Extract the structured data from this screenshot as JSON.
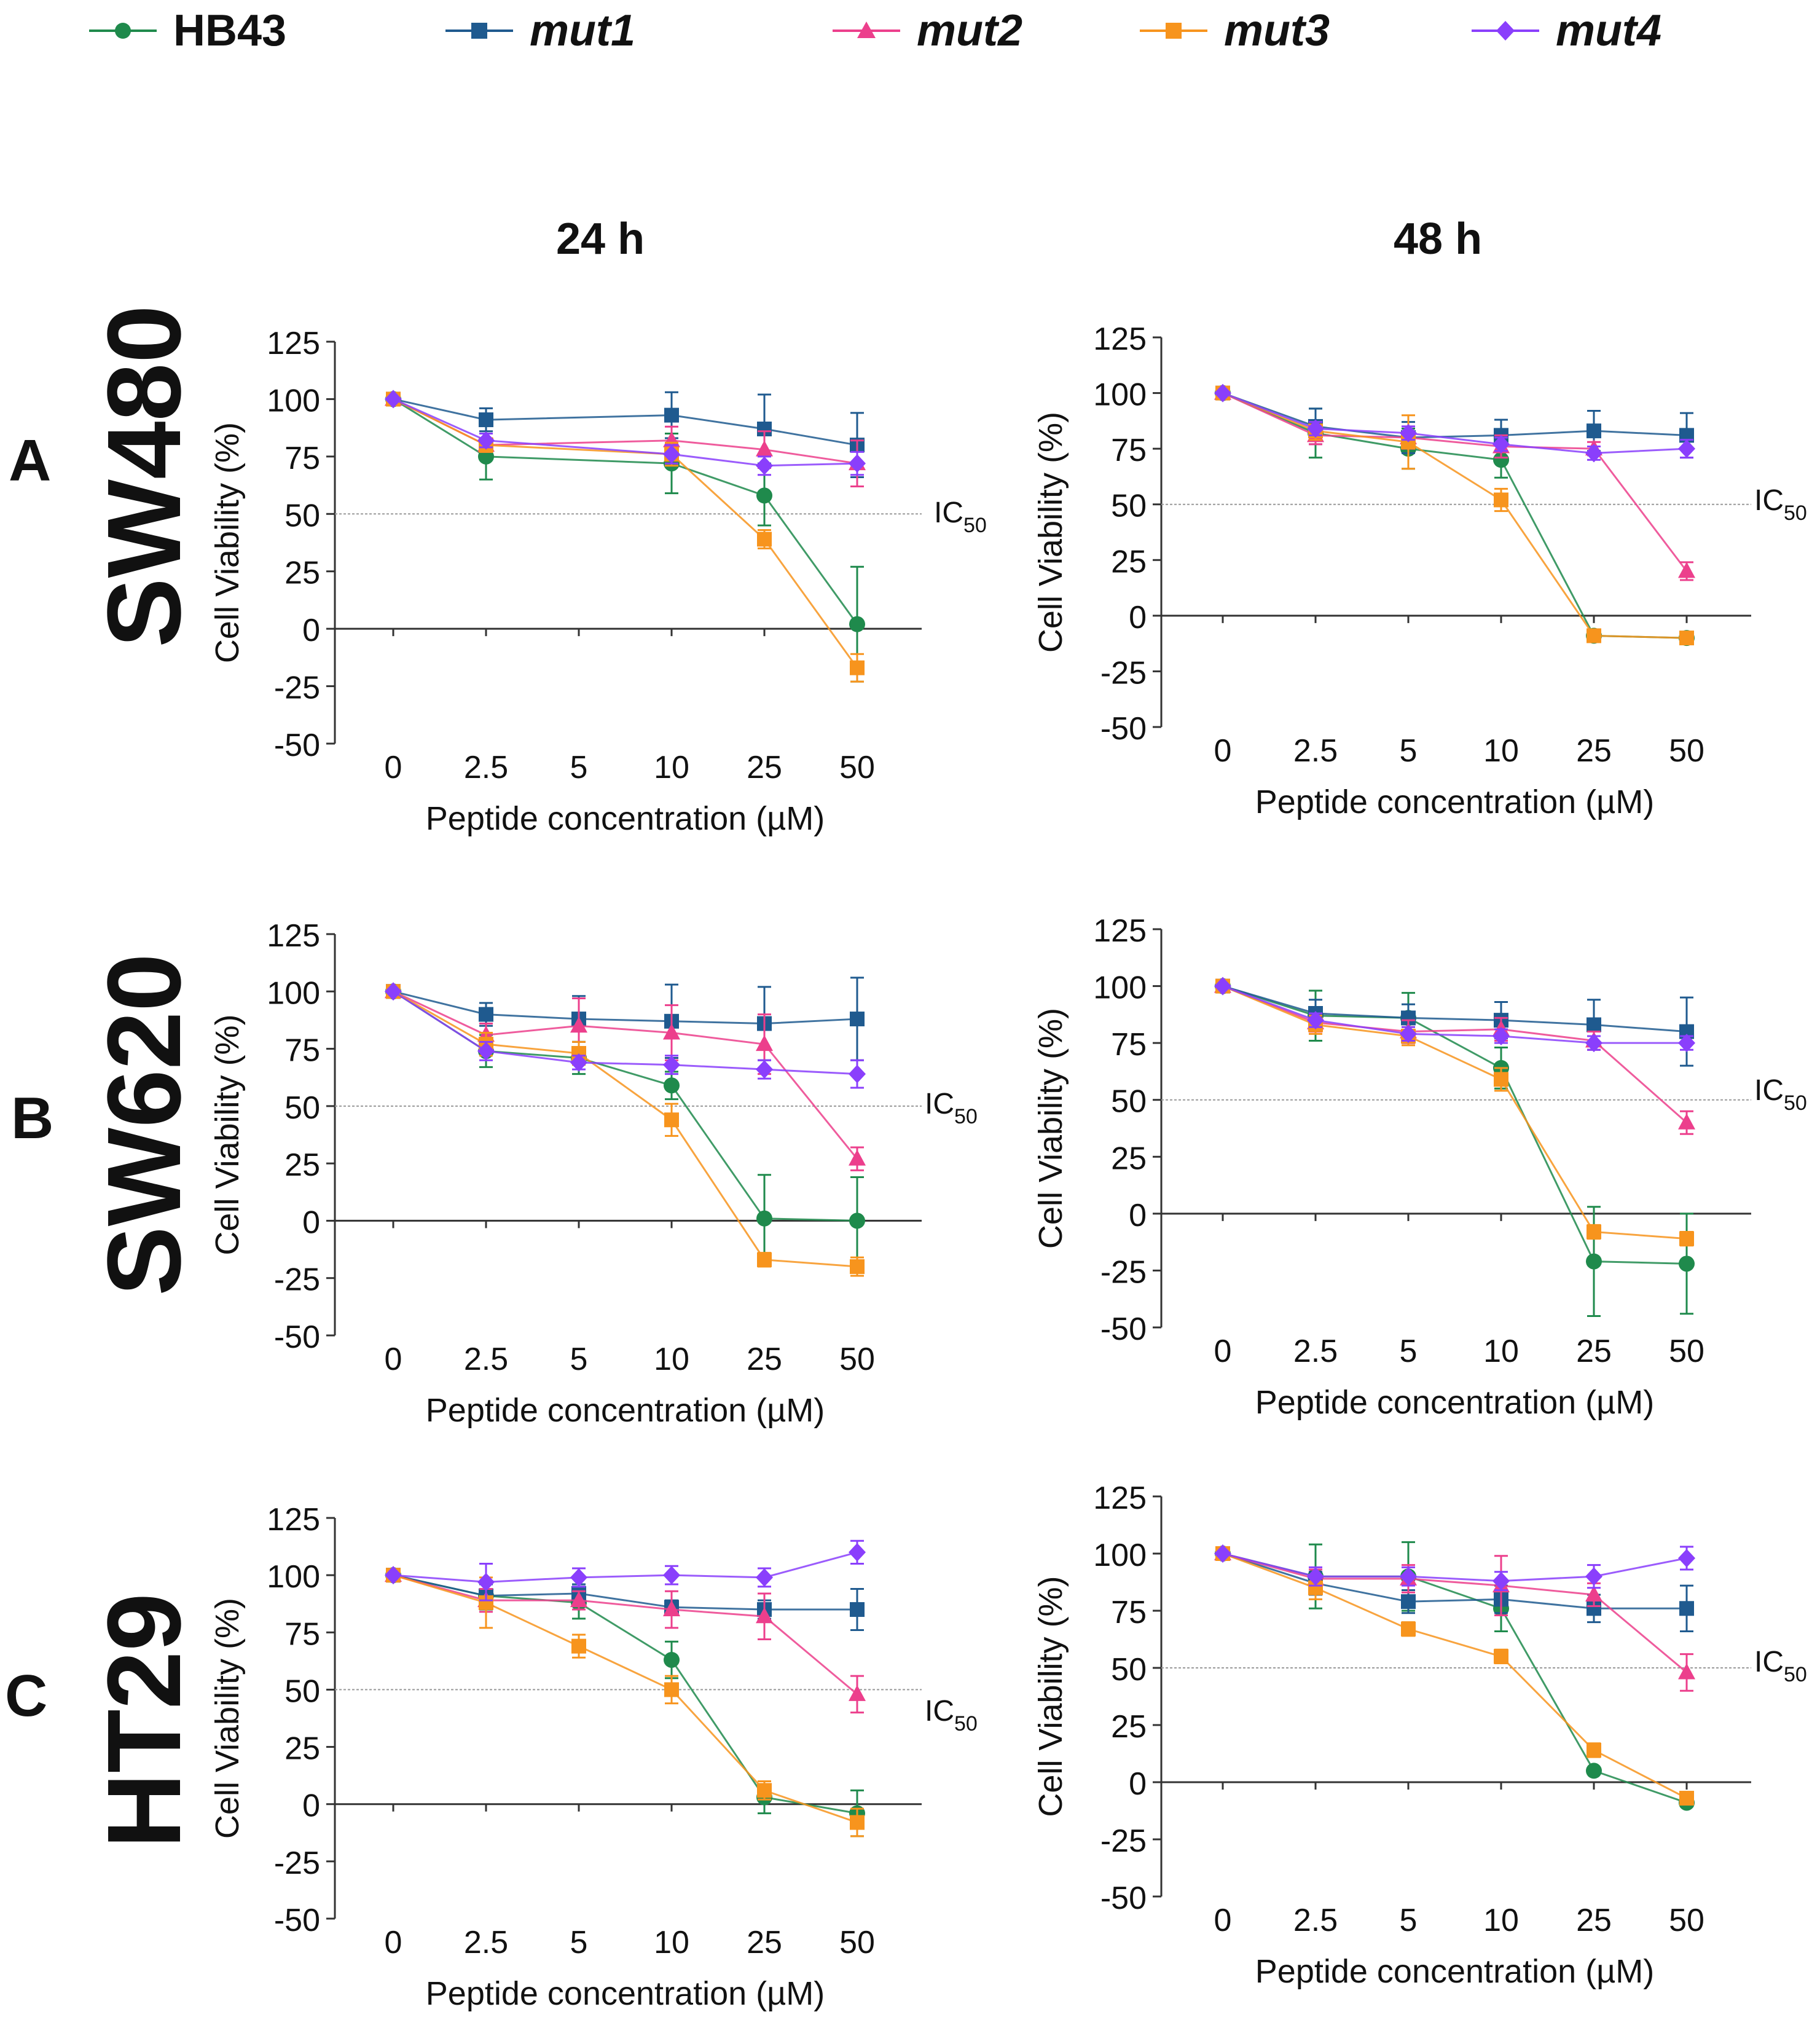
{
  "legend": [
    {
      "name": "HB43",
      "color": "#1f8a4c",
      "marker": "circle",
      "italic": false
    },
    {
      "name": "mut1",
      "color": "#1f5a8f",
      "marker": "square",
      "italic": true
    },
    {
      "name": "mut2",
      "color": "#ec3f8c",
      "marker": "triangle-up",
      "italic": true
    },
    {
      "name": "mut3",
      "color": "#f7941d",
      "marker": "square",
      "italic": true
    },
    {
      "name": "mut4",
      "color": "#8a3ffc",
      "marker": "diamond",
      "italic": true
    }
  ],
  "columns": [
    "24 h",
    "48 h"
  ],
  "rows": [
    {
      "letter": "A",
      "cell_line": "SW480"
    },
    {
      "letter": "B",
      "cell_line": "SW620"
    },
    {
      "letter": "C",
      "cell_line": "HT29"
    }
  ],
  "chart_data": [
    {
      "type": "line",
      "row": "A",
      "time": "24 h",
      "categories": [
        "0",
        "2.5",
        "5",
        "10",
        "25",
        "50"
      ],
      "xlabel": "Peptide concentration (µM)",
      "ylabel": "Cell Viability (%)",
      "ylim": [
        -50,
        125
      ],
      "yticks": [
        "125",
        "100",
        "75",
        "50",
        "25",
        "0",
        "-25",
        "-50"
      ],
      "ic50_label": "IC",
      "ic50_sub": "50",
      "ic50_value": 50,
      "series": [
        {
          "name": "HB43",
          "values": [
            100,
            75,
            null,
            72,
            58,
            2
          ],
          "errors": [
            0,
            10,
            null,
            13,
            13,
            25
          ]
        },
        {
          "name": "mut1",
          "values": [
            100,
            91,
            null,
            93,
            87,
            80
          ],
          "errors": [
            0,
            5,
            null,
            10,
            15,
            14
          ]
        },
        {
          "name": "mut2",
          "values": [
            100,
            80,
            null,
            82,
            78,
            72
          ],
          "errors": [
            0,
            3,
            null,
            6,
            8,
            10
          ]
        },
        {
          "name": "mut3",
          "values": [
            100,
            80,
            null,
            76,
            39,
            -17
          ],
          "errors": [
            0,
            3,
            null,
            5,
            4,
            6
          ]
        },
        {
          "name": "mut4",
          "values": [
            100,
            82,
            null,
            76,
            71,
            72
          ],
          "errors": [
            0,
            3,
            null,
            4,
            4,
            5
          ]
        }
      ]
    },
    {
      "type": "line",
      "row": "A",
      "time": "48 h",
      "categories": [
        "0",
        "2.5",
        "5",
        "10",
        "25",
        "50"
      ],
      "xlabel": "Peptide concentration (µM)",
      "ylabel": "Cell Viability (%)",
      "ylim": [
        -50,
        125
      ],
      "yticks": [
        "125",
        "100",
        "75",
        "50",
        "25",
        "0",
        "-25",
        "-50"
      ],
      "ic50_label": "IC",
      "ic50_sub": "50",
      "ic50_value": 50,
      "series": [
        {
          "name": "HB43",
          "values": [
            100,
            82,
            75,
            70,
            -9,
            -10
          ],
          "errors": [
            0,
            11,
            9,
            8,
            1,
            1
          ]
        },
        {
          "name": "mut1",
          "values": [
            100,
            85,
            80,
            81,
            83,
            81
          ],
          "errors": [
            0,
            8,
            7,
            7,
            9,
            10
          ]
        },
        {
          "name": "mut2",
          "values": [
            100,
            81,
            80,
            76,
            75,
            20
          ],
          "errors": [
            0,
            4,
            5,
            5,
            3,
            4
          ]
        },
        {
          "name": "mut3",
          "values": [
            100,
            83,
            78,
            52,
            -9,
            -10
          ],
          "errors": [
            0,
            4,
            12,
            5,
            1,
            1
          ]
        },
        {
          "name": "mut4",
          "values": [
            100,
            84,
            82,
            77,
            73,
            75
          ],
          "errors": [
            0,
            3,
            3,
            3,
            3,
            4
          ]
        }
      ]
    },
    {
      "type": "line",
      "row": "B",
      "time": "24 h",
      "categories": [
        "0",
        "2.5",
        "5",
        "10",
        "25",
        "50"
      ],
      "xlabel": "Peptide concentration (µM)",
      "ylabel": "Cell Viability (%)",
      "ylim": [
        -50,
        125
      ],
      "yticks": [
        "125",
        "100",
        "75",
        "50",
        "25",
        "0",
        "-25",
        "-50"
      ],
      "ic50_label": "IC",
      "ic50_sub": "50",
      "ic50_value": 50,
      "series": [
        {
          "name": "HB43",
          "values": [
            100,
            74,
            71,
            59,
            1,
            0
          ],
          "errors": [
            0,
            7,
            7,
            6,
            19,
            19
          ]
        },
        {
          "name": "mut1",
          "values": [
            100,
            90,
            88,
            87,
            86,
            88
          ],
          "errors": [
            0,
            5,
            10,
            16,
            16,
            18
          ]
        },
        {
          "name": "mut2",
          "values": [
            100,
            81,
            85,
            82,
            77,
            27
          ],
          "errors": [
            0,
            5,
            12,
            12,
            13,
            5
          ]
        },
        {
          "name": "mut3",
          "values": [
            100,
            77,
            73,
            44,
            -17,
            -20
          ],
          "errors": [
            0,
            5,
            5,
            7,
            3,
            4
          ]
        },
        {
          "name": "mut4",
          "values": [
            100,
            74,
            69,
            68,
            66,
            64
          ],
          "errors": [
            0,
            4,
            3,
            4,
            4,
            6
          ]
        }
      ]
    },
    {
      "type": "line",
      "row": "B",
      "time": "48 h",
      "categories": [
        "0",
        "2.5",
        "5",
        "10",
        "25",
        "50"
      ],
      "xlabel": "Peptide concentration (µM)",
      "ylabel": "Cell Viability (%)",
      "ylim": [
        -50,
        125
      ],
      "yticks": [
        "125",
        "100",
        "75",
        "50",
        "25",
        "0",
        "-25",
        "-50"
      ],
      "ic50_label": "IC",
      "ic50_sub": "50",
      "ic50_value": 50,
      "series": [
        {
          "name": "HB43",
          "values": [
            100,
            87,
            86,
            64,
            -21,
            -22
          ],
          "errors": [
            0,
            11,
            11,
            9,
            24,
            22
          ]
        },
        {
          "name": "mut1",
          "values": [
            100,
            88,
            86,
            85,
            83,
            80
          ],
          "errors": [
            0,
            6,
            6,
            8,
            11,
            15
          ]
        },
        {
          "name": "mut2",
          "values": [
            100,
            84,
            80,
            81,
            76,
            40
          ],
          "errors": [
            0,
            4,
            5,
            5,
            4,
            5
          ]
        },
        {
          "name": "mut3",
          "values": [
            100,
            83,
            78,
            59,
            -8,
            -11
          ],
          "errors": [
            0,
            4,
            4,
            5,
            3,
            3
          ]
        },
        {
          "name": "mut4",
          "values": [
            100,
            85,
            79,
            78,
            75,
            75
          ],
          "errors": [
            0,
            3,
            3,
            3,
            3,
            3
          ]
        }
      ]
    },
    {
      "type": "line",
      "row": "C",
      "time": "24 h",
      "categories": [
        "0",
        "2.5",
        "5",
        "10",
        "25",
        "50"
      ],
      "xlabel": "Peptide concentration (µM)",
      "ylabel": "Cell Viability (%)",
      "ylim": [
        -50,
        125
      ],
      "yticks": [
        "125",
        "100",
        "75",
        "50",
        "25",
        "0",
        "-25",
        "-50"
      ],
      "ic50_label": "IC",
      "ic50_sub": "50",
      "ic50_value": 50,
      "series": [
        {
          "name": "HB43",
          "values": [
            100,
            91,
            88,
            63,
            3,
            -4
          ],
          "errors": [
            0,
            6,
            7,
            8,
            7,
            10
          ]
        },
        {
          "name": "mut1",
          "values": [
            100,
            91,
            92,
            86,
            85,
            85
          ],
          "errors": [
            0,
            5,
            4,
            3,
            4,
            9
          ]
        },
        {
          "name": "mut2",
          "values": [
            100,
            89,
            89,
            85,
            82,
            48
          ],
          "errors": [
            0,
            5,
            4,
            8,
            10,
            8
          ]
        },
        {
          "name": "mut3",
          "values": [
            100,
            88,
            69,
            50,
            6,
            -8
          ],
          "errors": [
            0,
            11,
            5,
            6,
            4,
            6
          ]
        },
        {
          "name": "mut4",
          "values": [
            100,
            97,
            99,
            100,
            99,
            110
          ],
          "errors": [
            0,
            8,
            4,
            4,
            4,
            5
          ]
        }
      ]
    },
    {
      "type": "line",
      "row": "C",
      "time": "48 h",
      "categories": [
        "0",
        "2.5",
        "5",
        "10",
        "25",
        "50"
      ],
      "xlabel": "Peptide concentration (µM)",
      "ylabel": "Cell Viability (%)",
      "ylim": [
        -50,
        125
      ],
      "yticks": [
        "125",
        "100",
        "75",
        "50",
        "25",
        "0",
        "-25",
        "-50"
      ],
      "ic50_label": "IC",
      "ic50_sub": "50",
      "ic50_value": 50,
      "series": [
        {
          "name": "HB43",
          "values": [
            100,
            90,
            90,
            76,
            5,
            -9
          ],
          "errors": [
            0,
            14,
            15,
            10,
            1,
            1
          ]
        },
        {
          "name": "mut1",
          "values": [
            100,
            87,
            79,
            80,
            76,
            76
          ],
          "errors": [
            0,
            5,
            5,
            6,
            6,
            10
          ]
        },
        {
          "name": "mut2",
          "values": [
            100,
            89,
            89,
            86,
            82,
            48
          ],
          "errors": [
            0,
            4,
            6,
            13,
            5,
            8
          ]
        },
        {
          "name": "mut3",
          "values": [
            100,
            85,
            67,
            55,
            14,
            -7
          ],
          "errors": [
            0,
            5,
            3,
            3,
            3,
            2
          ]
        },
        {
          "name": "mut4",
          "values": [
            100,
            90,
            90,
            88,
            90,
            98
          ],
          "errors": [
            0,
            4,
            4,
            4,
            5,
            5
          ]
        }
      ]
    }
  ]
}
